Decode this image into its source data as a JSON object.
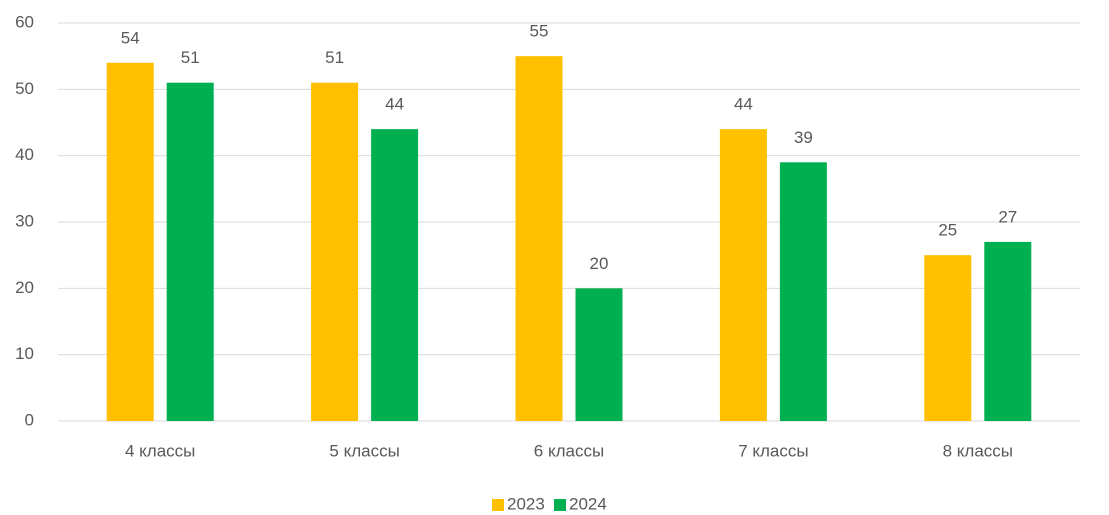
{
  "chart_data": {
    "type": "bar",
    "categories": [
      "4 классы",
      "5 классы",
      "6 классы",
      "7 классы",
      "8 классы"
    ],
    "series": [
      {
        "name": "2023",
        "color": "#ffc000",
        "values": [
          54,
          51,
          55,
          44,
          25
        ]
      },
      {
        "name": "2024",
        "color": "#00b050",
        "values": [
          51,
          44,
          20,
          39,
          27
        ]
      }
    ],
    "ylim": [
      0,
      60
    ],
    "yticks": [
      0,
      10,
      20,
      30,
      40,
      50,
      60
    ],
    "grid": true,
    "legend": "bottom"
  }
}
